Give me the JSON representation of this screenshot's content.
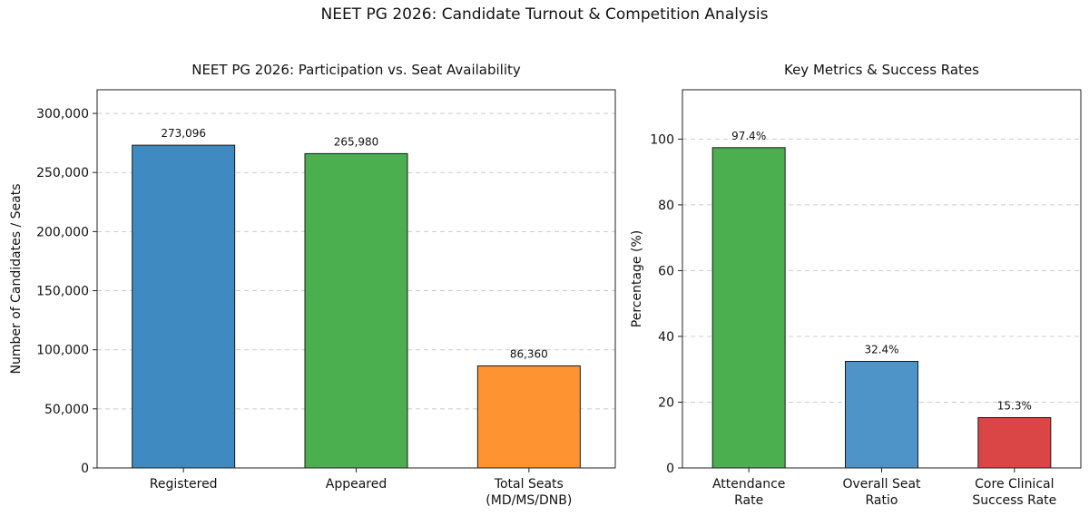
{
  "figure": {
    "title": "NEET PG 2026: Candidate Turnout & Competition Analysis"
  },
  "chart_data": [
    {
      "type": "bar",
      "title": "NEET PG 2026: Participation vs. Seat Availability",
      "xlabel": "",
      "ylabel": "Number of Candidates / Seats",
      "categories": [
        [
          "Registered"
        ],
        [
          "Appeared"
        ],
        [
          "Total Seats",
          "(MD/MS/DNB)"
        ]
      ],
      "values": [
        273096,
        265980,
        86360
      ],
      "value_labels": [
        "273,096",
        "265,980",
        "86,360"
      ],
      "colors": [
        "#3f8bc1",
        "#4caf4f",
        "#fe9332"
      ],
      "ylim": [
        0,
        320000
      ],
      "yticks": [
        0,
        50000,
        100000,
        150000,
        200000,
        250000,
        300000
      ],
      "ytick_labels": [
        "0",
        "50,000",
        "100,000",
        "150,000",
        "200,000",
        "250,000",
        "300,000"
      ],
      "grid": "y-dashed",
      "legend": "none"
    },
    {
      "type": "bar",
      "title": "Key Metrics & Success Rates",
      "xlabel": "",
      "ylabel": "Percentage (%)",
      "categories": [
        [
          "Attendance",
          "Rate"
        ],
        [
          "Overall Seat",
          "Ratio"
        ],
        [
          "Core Clinical",
          "Success Rate"
        ]
      ],
      "values": [
        97.4,
        32.4,
        15.3
      ],
      "value_labels": [
        "97.4%",
        "32.4%",
        "15.3%"
      ],
      "colors": [
        "#4caf4f",
        "#4f94c8",
        "#da4545"
      ],
      "ylim": [
        0,
        115
      ],
      "yticks": [
        0,
        20,
        40,
        60,
        80,
        100
      ],
      "ytick_labels": [
        "0",
        "20",
        "40",
        "60",
        "80",
        "100"
      ],
      "grid": "y-dashed",
      "legend": "none"
    }
  ]
}
